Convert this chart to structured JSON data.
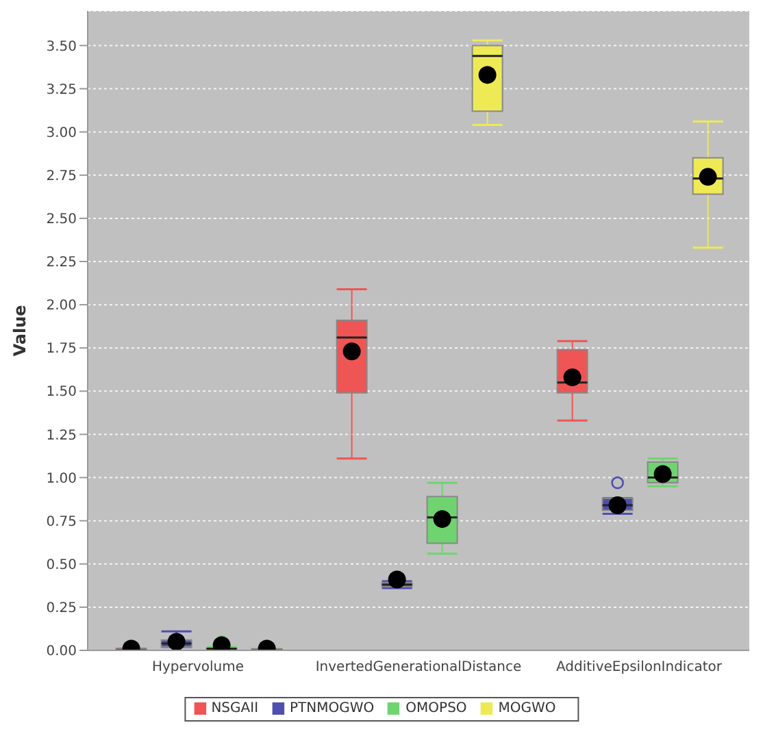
{
  "chart_data": {
    "type": "box",
    "ylabel": "Value",
    "categories": [
      "Hypervolume",
      "InvertedGenerationalDistance",
      "AdditiveEpsilonIndicator"
    ],
    "ylim": [
      0,
      3.7
    ],
    "yticks": [
      {
        "value": 0,
        "label": "0.00"
      },
      {
        "value": 0.25,
        "label": "0.25"
      },
      {
        "value": 0.5,
        "label": "0.50"
      },
      {
        "value": 0.75,
        "label": "0.75"
      },
      {
        "value": 1,
        "label": "1.00"
      },
      {
        "value": 1.25,
        "label": "1.25"
      },
      {
        "value": 1.5,
        "label": "1.50"
      },
      {
        "value": 1.75,
        "label": "1.75"
      },
      {
        "value": 2,
        "label": "2.00"
      },
      {
        "value": 2.25,
        "label": "2.25"
      },
      {
        "value": 2.5,
        "label": "2.50"
      },
      {
        "value": 2.75,
        "label": "2.75"
      },
      {
        "value": 3,
        "label": "3.00"
      },
      {
        "value": 3.25,
        "label": "3.25"
      },
      {
        "value": 3.5,
        "label": "3.50"
      }
    ],
    "grid": "y",
    "legend": "bottom",
    "series": [
      {
        "name": "NSGAII",
        "color": "#ef5555",
        "boxes": [
          {
            "low": 0,
            "q1": 0,
            "median": 0,
            "q3": 0.01,
            "high": 0.01,
            "mean": 0.01
          },
          {
            "low": 1.11,
            "q1": 1.49,
            "median": 1.81,
            "q3": 1.91,
            "high": 2.09,
            "mean": 1.73
          },
          {
            "low": 1.33,
            "q1": 1.49,
            "median": 1.55,
            "q3": 1.74,
            "high": 1.79,
            "mean": 1.58
          }
        ]
      },
      {
        "name": "PTNMOGWO",
        "color": "#4f4fb0",
        "boxes": [
          {
            "low": 0.02,
            "q1": 0.02,
            "median": 0.04,
            "q3": 0.06,
            "high": 0.11,
            "mean": 0.05
          },
          {
            "low": 0.36,
            "q1": 0.37,
            "median": 0.38,
            "q3": 0.39,
            "high": 0.4,
            "mean": 0.41
          },
          {
            "low": 0.79,
            "q1": 0.81,
            "median": 0.84,
            "q3": 0.88,
            "high": 0.88,
            "mean": 0.84,
            "outliers": [
              0.97
            ]
          }
        ]
      },
      {
        "name": "OMOPSO",
        "color": "#6fd46f",
        "boxes": [
          {
            "low": 0,
            "q1": 0,
            "median": 0.01,
            "q3": 0.01,
            "high": 0.02,
            "mean": 0.03,
            "outliers": [
              0.05
            ]
          },
          {
            "low": 0.56,
            "q1": 0.62,
            "median": 0.77,
            "q3": 0.89,
            "high": 0.97,
            "mean": 0.76
          },
          {
            "low": 0.95,
            "q1": 0.97,
            "median": 1.0,
            "q3": 1.09,
            "high": 1.11,
            "mean": 1.02
          }
        ]
      },
      {
        "name": "MOGWO",
        "color": "#eeea55",
        "boxes": [
          {
            "low": 0,
            "q1": 0,
            "median": 0,
            "q3": 0.01,
            "high": 0.01,
            "mean": 0.01
          },
          {
            "low": 3.04,
            "q1": 3.12,
            "median": 3.44,
            "q3": 3.5,
            "high": 3.53,
            "mean": 3.33
          },
          {
            "low": 2.33,
            "q1": 2.64,
            "median": 2.73,
            "q3": 2.85,
            "high": 3.06,
            "mean": 2.74
          }
        ]
      }
    ]
  }
}
